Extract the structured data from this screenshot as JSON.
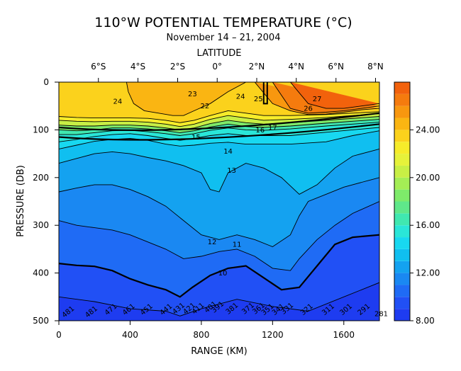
{
  "chart_data": {
    "type": "heatmap",
    "title": "110°W POTENTIAL TEMPERATURE (°C)",
    "subtitle": "November 14 – 21, 2004",
    "xlabel": "RANGE (KM)",
    "ylabel": "PRESSURE (DB)",
    "top_axis_label": "LATITUDE",
    "x_ticks": [
      "0",
      "400",
      "800",
      "1200",
      "1600"
    ],
    "x_tick_values": [
      0,
      400,
      800,
      1200,
      1600
    ],
    "xlim": [
      0,
      1800
    ],
    "y_ticks": [
      "0",
      "100",
      "200",
      "300",
      "400",
      "500"
    ],
    "y_tick_values": [
      0,
      100,
      200,
      300,
      400,
      500
    ],
    "ylim": [
      0,
      500
    ],
    "latitude_ticks": [
      "6°S",
      "4°S",
      "2°S",
      "0°",
      "2°N",
      "4°N",
      "6°N",
      "8°N"
    ],
    "latitude_positions_km": [
      222,
      444,
      667,
      889,
      1111,
      1333,
      1556,
      1778
    ],
    "colorbar_ticks": [
      "8.00",
      "12.00",
      "16.00",
      "20.00",
      "24.00"
    ],
    "colorbar_tick_values": [
      8,
      12,
      16,
      20,
      24
    ],
    "colorbar_range": [
      8,
      28
    ],
    "contour_labels": [
      {
        "text": "23",
        "x": 750,
        "y": 30
      },
      {
        "text": "24",
        "x": 330,
        "y": 45
      },
      {
        "text": "22",
        "x": 820,
        "y": 55
      },
      {
        "text": "24",
        "x": 1020,
        "y": 35
      },
      {
        "text": "25",
        "x": 1120,
        "y": 40
      },
      {
        "text": "26",
        "x": 1400,
        "y": 60
      },
      {
        "text": "27",
        "x": 1450,
        "y": 40
      },
      {
        "text": "16",
        "x": 1130,
        "y": 105
      },
      {
        "text": "17",
        "x": 1200,
        "y": 100
      },
      {
        "text": "15",
        "x": 770,
        "y": 120
      },
      {
        "text": "14",
        "x": 950,
        "y": 150
      },
      {
        "text": "13",
        "x": 970,
        "y": 190
      },
      {
        "text": "12",
        "x": 860,
        "y": 340
      },
      {
        "text": "11",
        "x": 1000,
        "y": 345
      },
      {
        "text": "10",
        "x": 920,
        "y": 405
      },
      {
        "text": "281",
        "x": 1810,
        "y": 490
      }
    ],
    "oxygen_labels": [
      {
        "text": "481",
        "x": 60,
        "y": 485
      },
      {
        "text": "481",
        "x": 190,
        "y": 485
      },
      {
        "text": "471",
        "x": 300,
        "y": 480
      },
      {
        "text": "461",
        "x": 400,
        "y": 480
      },
      {
        "text": "451",
        "x": 500,
        "y": 480
      },
      {
        "text": "441",
        "x": 610,
        "y": 480
      },
      {
        "text": "431",
        "x": 680,
        "y": 478
      },
      {
        "text": "421",
        "x": 740,
        "y": 478
      },
      {
        "text": "411",
        "x": 790,
        "y": 478
      },
      {
        "text": "401",
        "x": 860,
        "y": 475
      },
      {
        "text": "391",
        "x": 900,
        "y": 475
      },
      {
        "text": "381",
        "x": 980,
        "y": 478
      },
      {
        "text": "371",
        "x": 1070,
        "y": 478
      },
      {
        "text": "361",
        "x": 1130,
        "y": 478
      },
      {
        "text": "351",
        "x": 1180,
        "y": 480
      },
      {
        "text": "341",
        "x": 1240,
        "y": 480
      },
      {
        "text": "331",
        "x": 1290,
        "y": 478
      },
      {
        "text": "321",
        "x": 1400,
        "y": 480
      },
      {
        "text": "311",
        "x": 1520,
        "y": 480
      },
      {
        "text": "301",
        "x": 1620,
        "y": 480
      },
      {
        "text": "291",
        "x": 1720,
        "y": 480
      }
    ],
    "isotherms": [
      {
        "level": 27,
        "x": [
          1300,
          1400,
          1500,
          1600,
          1700,
          1800
        ],
        "y": [
          0,
          45,
          55,
          55,
          50,
          45
        ]
      },
      {
        "level": 26,
        "x": [
          1200,
          1300,
          1400,
          1500,
          1600,
          1700,
          1800
        ],
        "y": [
          0,
          55,
          65,
          63,
          60,
          55,
          50
        ]
      },
      {
        "level": 25,
        "x": [
          1100,
          1200,
          1300,
          1400,
          1500,
          1600,
          1700,
          1800
        ],
        "y": [
          0,
          45,
          60,
          68,
          67,
          63,
          58,
          55
        ]
      },
      {
        "level": 24,
        "x": [
          380,
          390,
          420,
          480,
          560,
          640,
          700,
          760,
          850,
          950,
          1050
        ],
        "y": [
          0,
          20,
          45,
          60,
          65,
          70,
          70,
          60,
          45,
          20,
          0
        ]
      },
      {
        "level": 23,
        "x": [
          0,
          100,
          200,
          300,
          400,
          500,
          600,
          680,
          760,
          850,
          950,
          1050,
          1150,
          1300,
          1500,
          1800
        ],
        "y": [
          72,
          74,
          75,
          75,
          75,
          76,
          80,
          85,
          80,
          70,
          60,
          65,
          70,
          70,
          68,
          62
        ]
      },
      {
        "level": 22,
        "x": [
          0,
          100,
          200,
          300,
          400,
          500,
          600,
          680,
          760,
          850,
          950,
          1050,
          1150,
          1300,
          1500,
          1800
        ],
        "y": [
          80,
          82,
          83,
          82,
          82,
          84,
          88,
          93,
          88,
          78,
          70,
          75,
          80,
          78,
          74,
          66
        ]
      },
      {
        "level": 20,
        "x": [
          0,
          100,
          200,
          300,
          400,
          500,
          600,
          680,
          760,
          850,
          950,
          1050,
          1150,
          1300,
          1500,
          1800
        ],
        "y": [
          90,
          92,
          92,
          90,
          90,
          92,
          96,
          100,
          96,
          87,
          80,
          85,
          88,
          85,
          80,
          72
        ]
      },
      {
        "level": 18,
        "x": [
          0,
          100,
          200,
          300,
          400,
          500,
          600,
          680,
          760,
          850,
          950,
          1050,
          1150,
          1300,
          1500,
          1800
        ],
        "y": [
          100,
          102,
          100,
          96,
          96,
          98,
          102,
          106,
          102,
          94,
          88,
          93,
          95,
          92,
          86,
          78
        ]
      },
      {
        "level": 16,
        "x": [
          0,
          100,
          200,
          300,
          400,
          500,
          600,
          680,
          760,
          850,
          950,
          1050,
          1150,
          1300,
          1500,
          1800
        ],
        "y": [
          110,
          110,
          106,
          102,
          101,
          104,
          108,
          112,
          108,
          101,
          96,
          100,
          101,
          98,
          92,
          84
        ]
      },
      {
        "level": 15,
        "x": [
          0,
          100,
          200,
          300,
          400,
          500,
          600,
          680,
          760,
          850,
          950,
          1050,
          1150,
          1300,
          1500,
          1800
        ],
        "y": [
          125,
          120,
          114,
          110,
          108,
          112,
          118,
          122,
          118,
          112,
          108,
          112,
          112,
          112,
          105,
          95
        ]
      },
      {
        "level": 14,
        "x": [
          0,
          100,
          200,
          300,
          400,
          500,
          600,
          680,
          760,
          850,
          950,
          1050,
          1150,
          1300,
          1500,
          1650,
          1800
        ],
        "y": [
          140,
          132,
          124,
          120,
          118,
          122,
          130,
          134,
          132,
          128,
          126,
          130,
          130,
          130,
          125,
          112,
          102
        ]
      },
      {
        "level": 13,
        "x": [
          0,
          100,
          200,
          300,
          400,
          500,
          600,
          700,
          800,
          850,
          900,
          950,
          1050,
          1150,
          1250,
          1350,
          1450,
          1550,
          1650,
          1800
        ],
        "y": [
          170,
          160,
          150,
          146,
          150,
          158,
          165,
          175,
          190,
          225,
          230,
          190,
          170,
          180,
          200,
          235,
          215,
          180,
          155,
          140
        ]
      },
      {
        "level": 12,
        "x": [
          0,
          100,
          200,
          300,
          400,
          500,
          600,
          700,
          800,
          900,
          1000,
          1100,
          1200,
          1300,
          1350,
          1400,
          1500,
          1600,
          1700,
          1800
        ],
        "y": [
          230,
          222,
          215,
          215,
          225,
          240,
          260,
          290,
          320,
          330,
          320,
          330,
          345,
          320,
          280,
          250,
          235,
          220,
          210,
          200
        ]
      },
      {
        "level": 11,
        "x": [
          0,
          100,
          200,
          300,
          400,
          500,
          600,
          700,
          800,
          900,
          1000,
          1100,
          1200,
          1300,
          1350,
          1450,
          1550,
          1650,
          1800
        ],
        "y": [
          290,
          300,
          305,
          310,
          320,
          335,
          350,
          370,
          365,
          355,
          350,
          365,
          390,
          395,
          370,
          330,
          300,
          275,
          250
        ]
      },
      {
        "level": 10,
        "x": [
          0,
          100,
          200,
          300,
          400,
          500,
          600,
          680,
          750,
          850,
          950,
          1050,
          1150,
          1250,
          1350,
          1450,
          1550,
          1650,
          1800
        ],
        "y": [
          380,
          384,
          386,
          395,
          412,
          425,
          435,
          450,
          430,
          405,
          390,
          385,
          410,
          435,
          430,
          385,
          340,
          325,
          320
        ],
        "bold": true
      },
      {
        "level": 9,
        "x": [
          0,
          200,
          400,
          600,
          680,
          800,
          1000,
          1200,
          1400,
          1600,
          1800
        ],
        "y": [
          450,
          460,
          475,
          480,
          490,
          475,
          455,
          470,
          480,
          450,
          420
        ]
      }
    ]
  }
}
